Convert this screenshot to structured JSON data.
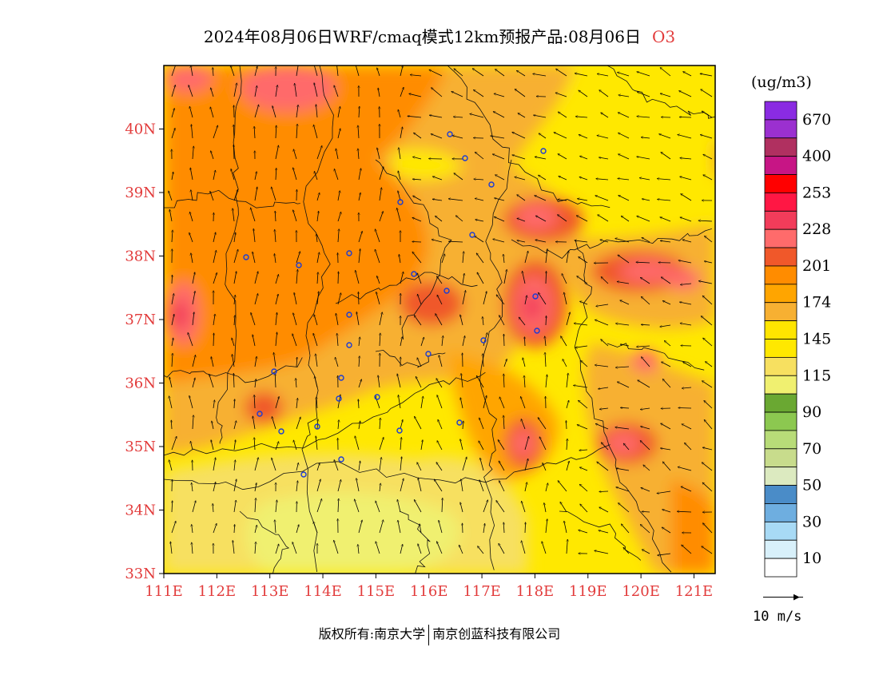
{
  "header": {
    "title": "2024年08月06日WRF/cmaq模式12km预报产品:08月06日",
    "pollutant": "O3"
  },
  "map": {
    "lon_range": [
      111.0,
      121.4
    ],
    "lat_range": [
      33.0,
      41.0
    ],
    "x_ticks": [
      "111E",
      "112E",
      "113E",
      "114E",
      "115E",
      "116E",
      "117E",
      "118E",
      "119E",
      "120E",
      "121E"
    ],
    "y_ticks": [
      "33N",
      "34N",
      "35N",
      "36N",
      "37N",
      "38N",
      "39N",
      "40N"
    ],
    "tick_color": "#e23b3b",
    "background_level": "145"
  },
  "legend": {
    "unit": "(ug/m3)",
    "levels": [
      {
        "label": "670",
        "color": "#8a2be2"
      },
      {
        "label": "",
        "color": "#9b30d0"
      },
      {
        "label": "400",
        "color": "#b03060"
      },
      {
        "label": "",
        "color": "#c71585"
      },
      {
        "label": "253",
        "color": "#ff0000"
      },
      {
        "label": "",
        "color": "#ff1744"
      },
      {
        "label": "228",
        "color": "#f23c5a"
      },
      {
        "label": "",
        "color": "#ff6b6b"
      },
      {
        "label": "201",
        "color": "#f0582a"
      },
      {
        "label": "",
        "color": "#ff8c00"
      },
      {
        "label": "174",
        "color": "#ffa500"
      },
      {
        "label": "",
        "color": "#f7b032"
      },
      {
        "label": "145",
        "color": "#ffe500"
      },
      {
        "label": "",
        "color": "#ffe800"
      },
      {
        "label": "115",
        "color": "#f7e060"
      },
      {
        "label": "",
        "color": "#f0f070"
      },
      {
        "label": "90",
        "color": "#6aa832"
      },
      {
        "label": "",
        "color": "#8cc850"
      },
      {
        "label": "70",
        "color": "#b8dc78"
      },
      {
        "label": "",
        "color": "#c8dc8c"
      },
      {
        "label": "50",
        "color": "#dceac0"
      },
      {
        "label": "",
        "color": "#4a8cc8"
      },
      {
        "label": "30",
        "color": "#6eaee0"
      },
      {
        "label": "",
        "color": "#a8daf5"
      },
      {
        "label": "10",
        "color": "#d8f0fa"
      },
      {
        "label": "",
        "color": "#ffffff"
      }
    ]
  },
  "vector_legend": {
    "label": "10 m/s"
  },
  "footer": {
    "owner": "版权所有:南京大学",
    "partner": "南京创蓝科技有限公司"
  }
}
